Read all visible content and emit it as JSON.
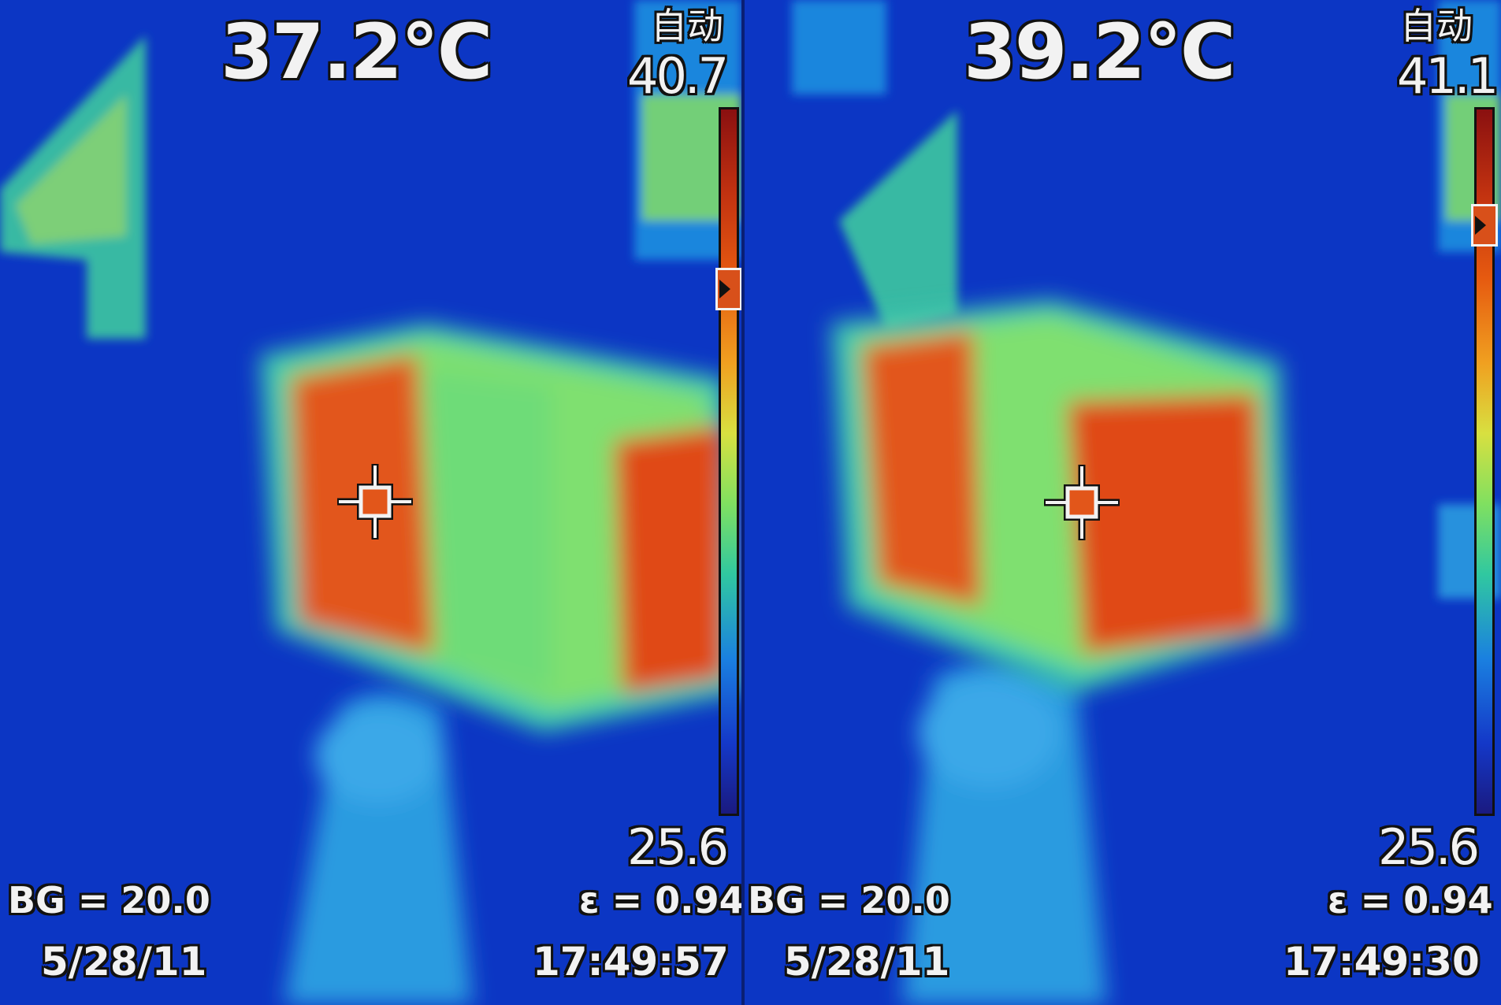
{
  "left_frame": {
    "spot_temp": "37.2°C",
    "mode": "自动",
    "scale_max": "40.7",
    "scale_min": "25.6",
    "background": "BG = 20.0",
    "emissivity": "ε = 0.94",
    "date": "5/28/11",
    "time": "17:49:57",
    "marker_level": 0.19
  },
  "right_frame": {
    "spot_temp": "39.2°C",
    "mode": "自动",
    "scale_max": "41.1",
    "scale_min": "25.6",
    "background": "BG = 20.0",
    "emissivity": "ε = 0.94",
    "date": "5/28/11",
    "time": "17:49:30",
    "marker_level": 0.1
  },
  "palette": {
    "background": "#0c36c4",
    "hot": "#e2561a",
    "warm": "#7fe070",
    "cool": "#2a9be0"
  }
}
